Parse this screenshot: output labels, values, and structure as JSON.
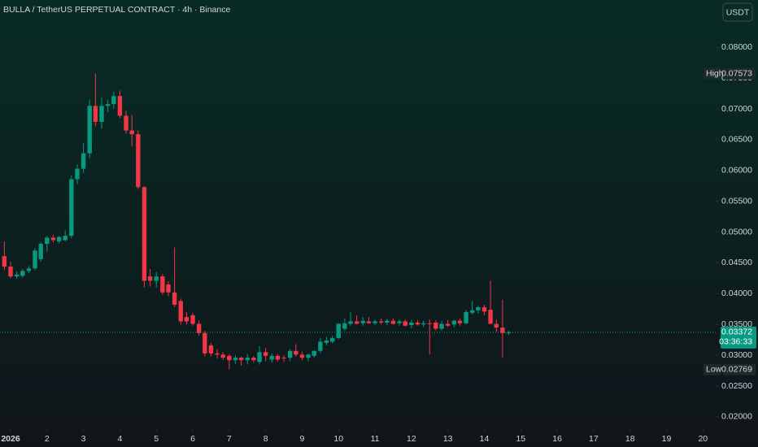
{
  "chart_data": {
    "type": "candlestick",
    "title": "BULLA / TetherUS PERPETUAL CONTRACT · 4h · Binance",
    "currency_button": "USDT",
    "up_color": "#089981",
    "down_color": "#f23645",
    "x": [
      0.83,
      1,
      1.17,
      1.33,
      1.5,
      1.67,
      1.83,
      2,
      2.17,
      2.33,
      2.5,
      2.67,
      2.83,
      3,
      3.17,
      3.33,
      3.5,
      3.67,
      3.83,
      4,
      4.17,
      4.33,
      4.5,
      4.67,
      4.83,
      5,
      5.17,
      5.33,
      5.5,
      5.67,
      5.83,
      6,
      6.17,
      6.33,
      6.5,
      6.67,
      6.83,
      7,
      7.17,
      7.33,
      7.5,
      7.67,
      7.83,
      8,
      8.17,
      8.33,
      8.5,
      8.67,
      8.83,
      9,
      9.17,
      9.33,
      9.5,
      9.67,
      9.83,
      10,
      10.17,
      10.33,
      10.5,
      10.67,
      10.83,
      11,
      11.17,
      11.33,
      11.5,
      11.67,
      11.83,
      12,
      12.17,
      12.33,
      12.5,
      12.67,
      12.83,
      13,
      13.17,
      13.33,
      13.5,
      13.67,
      13.83,
      14,
      14.17,
      14.33,
      14.5,
      14.67
    ],
    "open": [
      0.0461,
      0.0444,
      0.0428,
      0.0429,
      0.0437,
      0.0441,
      0.0456,
      0.0481,
      0.0491,
      0.0485,
      0.0487,
      0.0494,
      0.0586,
      0.0603,
      0.0628,
      0.0705,
      0.0679,
      0.0705,
      0.0708,
      0.0721,
      0.0689,
      0.0665,
      0.0659,
      0.0573,
      0.0428,
      0.0421,
      0.0428,
      0.0415,
      0.0402,
      0.0388,
      0.0362,
      0.0365,
      0.0351,
      0.0336,
      0.0316,
      0.0303,
      0.0301,
      0.0299,
      0.0292,
      0.0296,
      0.0292,
      0.0296,
      0.0289,
      0.0305,
      0.0293,
      0.0299,
      0.0296,
      0.0296,
      0.0307,
      0.0301,
      0.0296,
      0.0299,
      0.0307,
      0.032,
      0.0322,
      0.0328,
      0.0343,
      0.0351,
      0.0355,
      0.0352,
      0.0355,
      0.0352,
      0.0355,
      0.0353,
      0.0356,
      0.0352,
      0.0355,
      0.0349,
      0.0353,
      0.035,
      0.0352,
      0.0353,
      0.0343,
      0.0351,
      0.035,
      0.0356,
      0.0352,
      0.0369,
      0.0373,
      0.0378,
      0.0374,
      0.0351,
      0.0345,
      0.0336
    ],
    "high": [
      0.0485,
      0.0452,
      0.0436,
      0.044,
      0.0445,
      0.0474,
      0.0484,
      0.0494,
      0.0496,
      0.0494,
      0.0503,
      0.0592,
      0.061,
      0.0645,
      0.0715,
      0.07573,
      0.0718,
      0.0715,
      0.0728,
      0.073,
      0.0698,
      0.069,
      0.0665,
      0.0575,
      0.044,
      0.0435,
      0.0432,
      0.042,
      0.0475,
      0.0392,
      0.037,
      0.0369,
      0.0356,
      0.034,
      0.032,
      0.031,
      0.0305,
      0.0302,
      0.03,
      0.0298,
      0.0302,
      0.0299,
      0.0315,
      0.0312,
      0.0303,
      0.0302,
      0.03,
      0.031,
      0.0318,
      0.0306,
      0.0303,
      0.0308,
      0.0328,
      0.033,
      0.0332,
      0.0352,
      0.036,
      0.037,
      0.0365,
      0.0362,
      0.0362,
      0.0358,
      0.036,
      0.0359,
      0.036,
      0.0358,
      0.0358,
      0.0357,
      0.0357,
      0.0356,
      0.0358,
      0.0357,
      0.0356,
      0.0357,
      0.0358,
      0.036,
      0.0374,
      0.0388,
      0.038,
      0.0382,
      0.0421,
      0.0358,
      0.039,
      0.034
    ],
    "low": [
      0.0438,
      0.0425,
      0.0424,
      0.0426,
      0.0433,
      0.0438,
      0.0452,
      0.0468,
      0.0483,
      0.0482,
      0.0485,
      0.049,
      0.0578,
      0.0596,
      0.062,
      0.0672,
      0.0668,
      0.0695,
      0.07,
      0.0685,
      0.066,
      0.064,
      0.057,
      0.041,
      0.0412,
      0.041,
      0.0398,
      0.0396,
      0.0378,
      0.035,
      0.035,
      0.0348,
      0.0332,
      0.0298,
      0.0298,
      0.0295,
      0.0292,
      0.02769,
      0.0286,
      0.0283,
      0.0285,
      0.0288,
      0.0285,
      0.029,
      0.0288,
      0.029,
      0.0289,
      0.029,
      0.0298,
      0.0292,
      0.029,
      0.0296,
      0.0303,
      0.0316,
      0.0319,
      0.0326,
      0.034,
      0.0348,
      0.035,
      0.0348,
      0.0351,
      0.0349,
      0.035,
      0.0349,
      0.035,
      0.0348,
      0.0347,
      0.0344,
      0.0348,
      0.0346,
      0.0301,
      0.034,
      0.034,
      0.0346,
      0.0346,
      0.0348,
      0.035,
      0.0366,
      0.0368,
      0.0365,
      0.0352,
      0.0338,
      0.0296,
      0.0333
    ],
    "close": [
      0.0444,
      0.0428,
      0.0431,
      0.0437,
      0.0441,
      0.047,
      0.0481,
      0.0491,
      0.0487,
      0.0492,
      0.0494,
      0.0586,
      0.0603,
      0.0628,
      0.0705,
      0.0679,
      0.0705,
      0.0708,
      0.0721,
      0.0689,
      0.0665,
      0.0659,
      0.0573,
      0.0421,
      0.0421,
      0.0428,
      0.0402,
      0.0402,
      0.0382,
      0.0355,
      0.0355,
      0.0351,
      0.0336,
      0.0303,
      0.0303,
      0.0301,
      0.0296,
      0.0292,
      0.0296,
      0.0292,
      0.0296,
      0.0292,
      0.0305,
      0.0299,
      0.0299,
      0.0293,
      0.0295,
      0.0307,
      0.0301,
      0.0296,
      0.0301,
      0.0307,
      0.0322,
      0.0324,
      0.0328,
      0.0351,
      0.0352,
      0.0355,
      0.0351,
      0.0356,
      0.0352,
      0.0355,
      0.0353,
      0.0356,
      0.0351,
      0.0355,
      0.0348,
      0.0353,
      0.035,
      0.0352,
      0.0351,
      0.0343,
      0.0351,
      0.0348,
      0.0356,
      0.0352,
      0.037,
      0.0373,
      0.0378,
      0.0371,
      0.0351,
      0.0345,
      0.0336,
      0.03372
    ],
    "xlim": [
      0.71,
      20.35
    ],
    "xticks": [
      {
        "value": 1,
        "label": "2026"
      },
      2,
      3,
      4,
      5,
      6,
      7,
      8,
      9,
      10,
      11,
      12,
      13,
      14,
      15,
      16,
      17,
      18,
      19,
      20
    ],
    "ylim": [
      0.018,
      0.0877
    ],
    "yticks": [
      {
        "value": 0.02,
        "label": "0.02000"
      },
      {
        "value": 0.025,
        "label": "0.02500"
      },
      {
        "value": 0.03,
        "label": "0.03000"
      },
      {
        "value": 0.035,
        "label": "0.03500"
      },
      {
        "value": 0.04,
        "label": "0.04000"
      },
      {
        "value": 0.045,
        "label": "0.04500"
      },
      {
        "value": 0.05,
        "label": "0.05000"
      },
      {
        "value": 0.055,
        "label": "0.05500"
      },
      {
        "value": 0.06,
        "label": "0.06000"
      },
      {
        "value": 0.065,
        "label": "0.06500"
      },
      {
        "value": 0.07,
        "label": "0.07000"
      },
      {
        "value": 0.075,
        "label": "0.07500"
      },
      {
        "value": 0.08,
        "label": "0.08000"
      }
    ],
    "high_marker": {
      "name": "High",
      "value": 0.07573,
      "value_label": "0.07573"
    },
    "low_marker": {
      "name": "Low",
      "value": 0.02769,
      "value_label": "0.02769"
    },
    "last_price": {
      "value": 0.03372,
      "value_label": "0.03372",
      "countdown": "03:36:33"
    }
  }
}
